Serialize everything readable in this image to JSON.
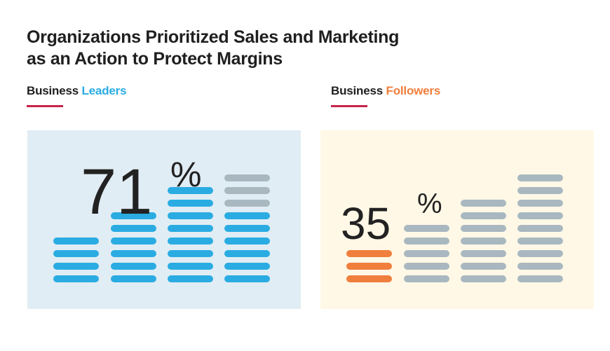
{
  "title": {
    "line1": "Organizations Prioritized Sales and Marketing",
    "line2": "as an Action to Protect Margins"
  },
  "colors": {
    "leaders": "#2aace2",
    "followers": "#f07e3c",
    "neutral": "#a9b8c0",
    "leaders_bg": "#e1edf4",
    "followers_bg": "#fff8e6",
    "underline": "#c8234a"
  },
  "chart_data": [
    {
      "type": "bar",
      "legend_prefix": "Business",
      "legend_highlight": "Leaders",
      "value": 71,
      "percent_sign": "%",
      "value_label": "71",
      "columns_total": [
        4,
        6,
        8,
        9
      ],
      "columns_filled": [
        4,
        6,
        8,
        6
      ]
    },
    {
      "type": "bar",
      "legend_prefix": "Business",
      "legend_highlight": "Followers",
      "value": 35,
      "percent_sign": "%",
      "value_label": "35",
      "columns_total": [
        3,
        5,
        7,
        9
      ],
      "columns_filled": [
        3,
        0,
        0,
        0
      ]
    }
  ]
}
